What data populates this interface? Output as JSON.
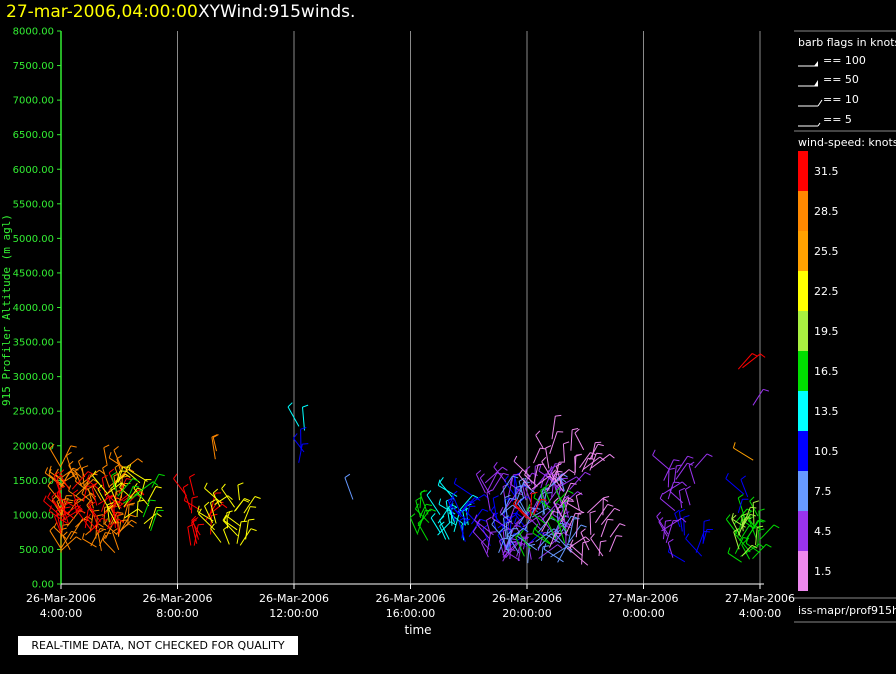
{
  "header": {
    "datetime": "27-mar-2006,04:00:00",
    "product": "XYWind:915winds."
  },
  "quality_notice": "REAL-TIME DATA, NOT CHECKED FOR QUALITY",
  "footer_id": "iss-mapr/prof915h",
  "colors": {
    "datetime": "#ffff00",
    "axis_y": "#33ee33",
    "background": "#000000",
    "grid": "#888888"
  },
  "chart_data": {
    "type": "scatter",
    "title": "XYWind:915winds.",
    "xlabel": "time",
    "ylabel": "915 Profiler Altitude (m agl)",
    "ylim": [
      0,
      8000
    ],
    "xlim": [
      "2006-03-26 04:00",
      "2006-03-27 04:00"
    ],
    "grid": "vertical",
    "y_ticks": [
      "0.00",
      "500.00",
      "1000.00",
      "1500.00",
      "2000.00",
      "2500.00",
      "3000.00",
      "3500.00",
      "4000.00",
      "4500.00",
      "5000.00",
      "5500.00",
      "6000.00",
      "6500.00",
      "7000.00",
      "7500.00",
      "8000.00"
    ],
    "x_ticks": [
      {
        "date": "26-Mar-2006",
        "time": "4:00:00"
      },
      {
        "date": "26-Mar-2006",
        "time": "8:00:00"
      },
      {
        "date": "26-Mar-2006",
        "time": "12:00:00"
      },
      {
        "date": "26-Mar-2006",
        "time": "16:00:00"
      },
      {
        "date": "26-Mar-2006",
        "time": "20:00:00"
      },
      {
        "date": "27-Mar-2006",
        "time": "0:00:00"
      },
      {
        "date": "27-Mar-2006",
        "time": "4:00:00"
      }
    ],
    "barb_legend": {
      "title": "barb flags in knots",
      "entries": [
        "== 100",
        "== 50",
        "== 10",
        "== 5"
      ]
    },
    "speed_legend": {
      "title": "wind-speed: knots",
      "bins": [
        {
          "label": "31.5",
          "color": "#ff0000"
        },
        {
          "label": "28.5",
          "color": "#ff8800"
        },
        {
          "label": "25.5",
          "color": "#ffa000"
        },
        {
          "label": "22.5",
          "color": "#ffff00"
        },
        {
          "label": "19.5",
          "color": "#a8f040"
        },
        {
          "label": "16.5",
          "color": "#00dd00"
        },
        {
          "label": "13.5",
          "color": "#00ffff"
        },
        {
          "label": "10.5",
          "color": "#0000ff"
        },
        {
          "label": "7.5",
          "color": "#6699ff"
        },
        {
          "label": "4.5",
          "color": "#9933ee"
        },
        {
          "label": "1.5",
          "color": "#ee88ee"
        }
      ]
    },
    "clusters": [
      {
        "t_hours": 0.8,
        "alt_min": 450,
        "alt_max": 1750,
        "speed": 28.5,
        "n": 80,
        "spread_h": 3.0
      },
      {
        "t_hours": 0.9,
        "alt_min": 700,
        "alt_max": 1400,
        "speed": 31.5,
        "n": 45,
        "spread_h": 2.6
      },
      {
        "t_hours": 2.3,
        "alt_min": 600,
        "alt_max": 1550,
        "speed": 22.5,
        "n": 20,
        "spread_h": 1.6
      },
      {
        "t_hours": 2.5,
        "alt_min": 700,
        "alt_max": 1500,
        "speed": 16.5,
        "n": 8,
        "spread_h": 1.4
      },
      {
        "t_hours": 4.7,
        "alt_min": 550,
        "alt_max": 1350,
        "speed": 31.5,
        "n": 14,
        "spread_h": 0.9
      },
      {
        "t_hours": 5.7,
        "alt_min": 550,
        "alt_max": 1250,
        "speed": 22.5,
        "n": 22,
        "spread_h": 1.4
      },
      {
        "t_hours": 5.3,
        "alt_min": 1800,
        "alt_max": 1950,
        "speed": 28.5,
        "n": 2,
        "spread_h": 0.2
      },
      {
        "t_hours": 8.2,
        "alt_min": 2200,
        "alt_max": 2300,
        "speed": 13.5,
        "n": 2,
        "spread_h": 0.4
      },
      {
        "t_hours": 8.2,
        "alt_min": 1750,
        "alt_max": 2000,
        "speed": 10.5,
        "n": 3,
        "spread_h": 0.4
      },
      {
        "t_hours": 10.0,
        "alt_min": 1100,
        "alt_max": 1300,
        "speed": 7.5,
        "n": 1,
        "spread_h": 0.1
      },
      {
        "t_hours": 12.4,
        "alt_min": 600,
        "alt_max": 1100,
        "speed": 16.5,
        "n": 9,
        "spread_h": 0.5
      },
      {
        "t_hours": 13.4,
        "alt_min": 600,
        "alt_max": 1300,
        "speed": 13.5,
        "n": 18,
        "spread_h": 1.2
      },
      {
        "t_hours": 14.0,
        "alt_min": 600,
        "alt_max": 1300,
        "speed": 10.5,
        "n": 14,
        "spread_h": 1.0
      },
      {
        "t_hours": 15.3,
        "alt_min": 500,
        "alt_max": 1350,
        "speed": 10.5,
        "n": 22,
        "spread_h": 1.5
      },
      {
        "t_hours": 16.0,
        "alt_min": 300,
        "alt_max": 1500,
        "speed": 4.5,
        "n": 75,
        "spread_h": 3.0
      },
      {
        "t_hours": 16.3,
        "alt_min": 300,
        "alt_max": 1400,
        "speed": 7.5,
        "n": 45,
        "spread_h": 2.6
      },
      {
        "t_hours": 16.6,
        "alt_min": 400,
        "alt_max": 1200,
        "speed": 16.5,
        "n": 14,
        "spread_h": 1.6
      },
      {
        "t_hours": 16.2,
        "alt_min": 900,
        "alt_max": 1150,
        "speed": 31.5,
        "n": 4,
        "spread_h": 0.5
      },
      {
        "t_hours": 17.2,
        "alt_min": 1300,
        "alt_max": 2100,
        "speed": 1.5,
        "n": 28,
        "spread_h": 2.2
      },
      {
        "t_hours": 17.7,
        "alt_min": 250,
        "alt_max": 1200,
        "speed": 1.5,
        "n": 25,
        "spread_h": 2.4
      },
      {
        "t_hours": 21.2,
        "alt_min": 1050,
        "alt_max": 1700,
        "speed": 4.5,
        "n": 14,
        "spread_h": 1.2
      },
      {
        "t_hours": 21.6,
        "alt_min": 300,
        "alt_max": 900,
        "speed": 10.5,
        "n": 8,
        "spread_h": 1.0
      },
      {
        "t_hours": 21.0,
        "alt_min": 300,
        "alt_max": 800,
        "speed": 4.5,
        "n": 6,
        "spread_h": 0.8
      },
      {
        "t_hours": 23.6,
        "alt_min": 300,
        "alt_max": 1000,
        "speed": 16.5,
        "n": 22,
        "spread_h": 1.2
      },
      {
        "t_hours": 23.7,
        "alt_min": 350,
        "alt_max": 900,
        "speed": 19.5,
        "n": 10,
        "spread_h": 1.0
      },
      {
        "t_hours": 23.4,
        "alt_min": 1000,
        "alt_max": 1300,
        "speed": 10.5,
        "n": 3,
        "spread_h": 0.5
      },
      {
        "t_hours": 23.8,
        "alt_min": 2500,
        "alt_max": 2700,
        "speed": 4.5,
        "n": 1,
        "spread_h": 0.1
      },
      {
        "t_hours": 23.8,
        "alt_min": 1600,
        "alt_max": 1800,
        "speed": 25.5,
        "n": 1,
        "spread_h": 0.1
      },
      {
        "t_hours": 23.4,
        "alt_min": 3000,
        "alt_max": 3150,
        "speed": 31.5,
        "n": 2,
        "spread_h": 0.3
      }
    ]
  }
}
